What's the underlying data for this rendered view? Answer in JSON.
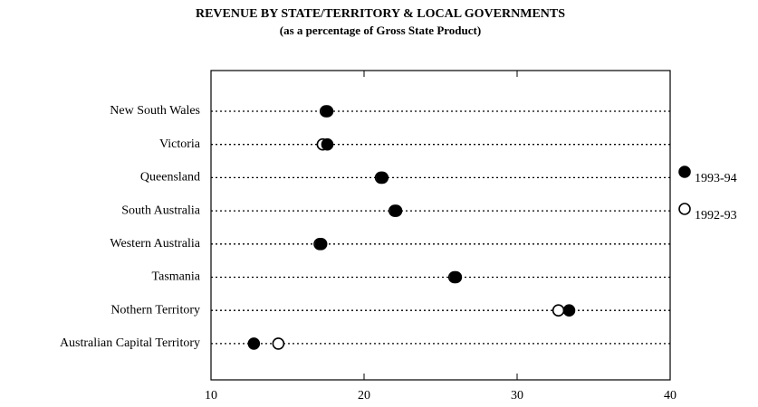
{
  "chart_data": {
    "type": "dot",
    "title": "REVENUE BY STATE/TERRITORY & LOCAL GOVERNMENTS",
    "subtitle": "(as a percentage of Gross State Product)",
    "categories": [
      "New South Wales",
      "Victoria",
      "Queensland",
      "South Australia",
      "Western Australia",
      "Tasmania",
      "Nothern Territory",
      "Australian Capital Territory"
    ],
    "series": [
      {
        "name": "1992-93",
        "color": "#000000",
        "marker": "open",
        "values": [
          17.5,
          17.3,
          21.1,
          22.0,
          17.1,
          25.9,
          32.7,
          14.4
        ]
      },
      {
        "name": "1993-94",
        "color": "#000000",
        "marker": "filled",
        "values": [
          17.6,
          17.6,
          21.2,
          22.1,
          17.2,
          26.0,
          33.4,
          12.8
        ]
      }
    ],
    "xlim": [
      10,
      40
    ],
    "xticks": [
      10,
      20,
      30,
      40
    ],
    "legend": "right"
  }
}
